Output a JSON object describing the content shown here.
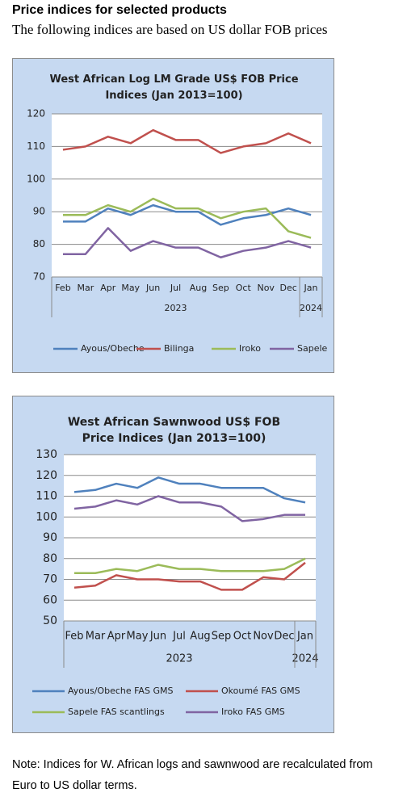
{
  "header": {
    "title": "Price indices for selected products",
    "subtitle": "The following indices are based on US dollar FOB prices"
  },
  "chart_data": [
    {
      "type": "line",
      "title": "West African Log LM Grade US$ FOB Price Indices (Jan 2013=100)",
      "categories": [
        "Feb",
        "Mar",
        "Apr",
        "May",
        "Jun",
        "Jul",
        "Aug",
        "Sep",
        "Oct",
        "Nov",
        "Dec",
        "Jan"
      ],
      "x_groups": [
        "2023",
        "2024"
      ],
      "series": [
        {
          "name": "Ayous/Obeche",
          "color": "#4f81bd",
          "values": [
            87,
            87,
            91,
            89,
            92,
            90,
            90,
            86,
            88,
            89,
            91,
            89
          ]
        },
        {
          "name": "Bilinga",
          "color": "#c0504d",
          "values": [
            109,
            110,
            113,
            111,
            115,
            112,
            112,
            108,
            110,
            111,
            114,
            111
          ]
        },
        {
          "name": "Iroko",
          "color": "#9bbb59",
          "values": [
            89,
            89,
            92,
            90,
            94,
            91,
            91,
            88,
            90,
            91,
            84,
            82
          ]
        },
        {
          "name": "Sapele",
          "color": "#8064a2",
          "values": [
            77,
            77,
            85,
            78,
            81,
            79,
            79,
            76,
            78,
            79,
            81,
            79
          ]
        }
      ],
      "ylim": [
        70,
        120
      ],
      "yticks": [
        70,
        80,
        90,
        100,
        110,
        120
      ],
      "grid": true,
      "legend": "bottom"
    },
    {
      "type": "line",
      "title": "West African Sawnwood US$ FOB Price Indices (Jan 2013=100)",
      "categories": [
        "Feb",
        "Mar",
        "Apr",
        "May",
        "Jun",
        "Jul",
        "Aug",
        "Sep",
        "Oct",
        "Nov",
        "Dec",
        "Jan"
      ],
      "x_groups": [
        "2023",
        "2024"
      ],
      "series": [
        {
          "name": "Ayous/Obeche FAS GMS",
          "color": "#4f81bd",
          "values": [
            112,
            113,
            116,
            114,
            119,
            116,
            116,
            114,
            114,
            114,
            109,
            107
          ]
        },
        {
          "name": "Okoumé FAS GMS",
          "color": "#c0504d",
          "values": [
            66,
            67,
            72,
            70,
            70,
            69,
            69,
            65,
            65,
            71,
            70,
            78
          ]
        },
        {
          "name": "Sapele FAS scantlings",
          "color": "#9bbb59",
          "values": [
            73,
            73,
            75,
            74,
            77,
            75,
            75,
            74,
            74,
            74,
            75,
            80
          ]
        },
        {
          "name": "Iroko FAS GMS",
          "color": "#8064a2",
          "values": [
            104,
            105,
            108,
            106,
            110,
            107,
            107,
            105,
            98,
            99,
            101,
            101
          ]
        }
      ],
      "ylim": [
        50,
        130
      ],
      "yticks": [
        50,
        60,
        70,
        80,
        90,
        100,
        110,
        120,
        130
      ],
      "grid": true,
      "legend": "bottom"
    }
  ],
  "note": "Note: Indices for W. African logs and sawnwood are recalculated from Euro to US dollar terms."
}
